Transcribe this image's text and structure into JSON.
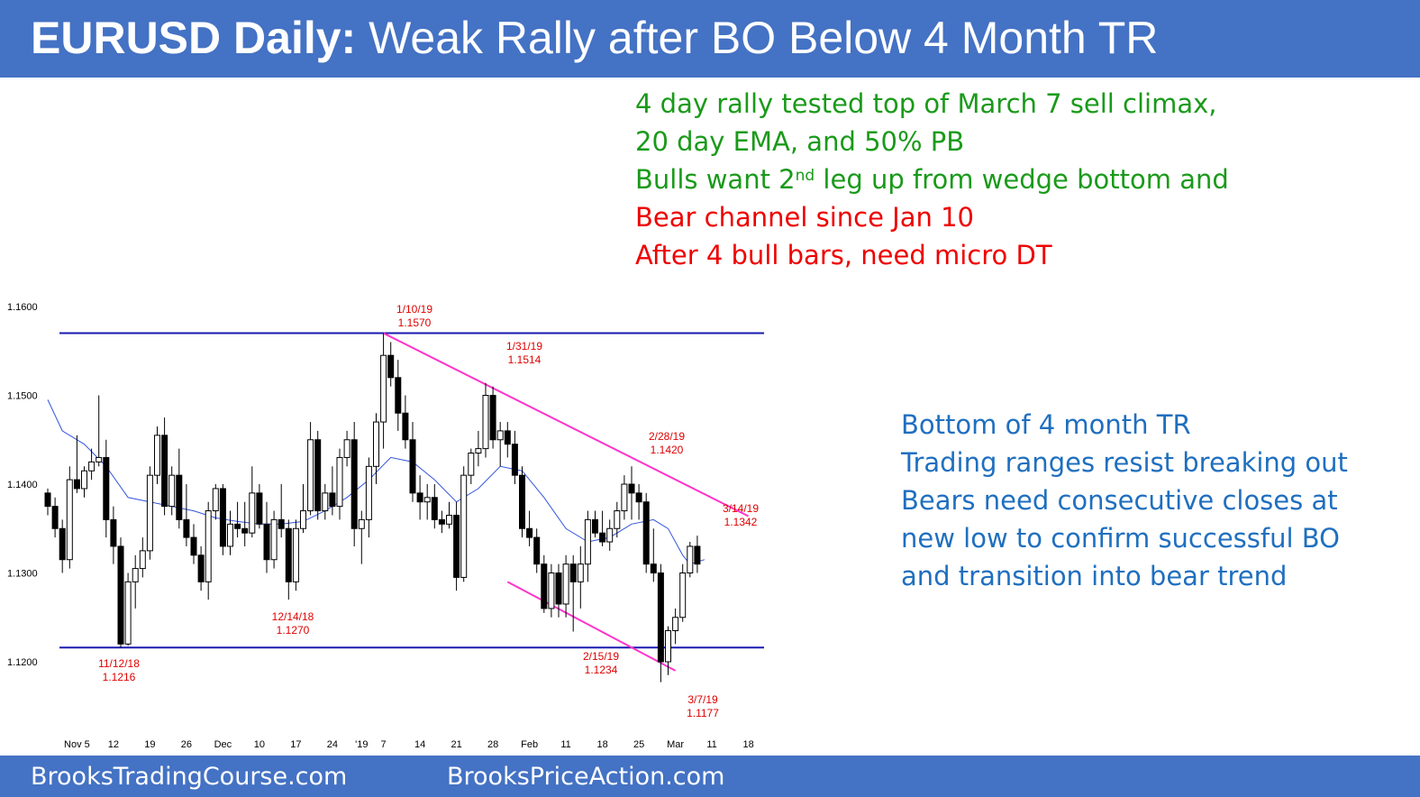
{
  "header": {
    "title_bold": "EURUSD Daily:",
    "title_rest": "Weak Rally after BO Below 4 Month TR"
  },
  "notes_top": {
    "line1": "4 day rally tested top of March 7 sell climax,",
    "line2": "20 day EMA, and 50% PB",
    "line3_pre": "Bulls want 2",
    "line3_sup": "nd",
    "line3_post": " leg up from wedge bottom and",
    "line4": "Bear channel since Jan 10",
    "line5": "After 4 bull bars, need micro DT"
  },
  "notes_right": {
    "line1": "Bottom of 4 month TR",
    "line2": "Trading ranges resist breaking out",
    "line3": "Bears need consecutive closes at",
    "line4": "new low to confirm successful BO",
    "line5": "and transition into bear trend"
  },
  "footer": {
    "left": "BrooksTradingCourse.com",
    "center": "BrooksPriceAction.com"
  },
  "colors": {
    "banner": "#4472c4",
    "green_text": "#1a9a1a",
    "red_text": "#ee0000",
    "blue_text": "#1f6fbf",
    "range_line": "#1a1ab0",
    "channel_line": "#ff33cc",
    "ema_line": "#3355dd",
    "label_red": "#e00000"
  },
  "chart_data": {
    "type": "candlestick",
    "ylim": [
      1.115,
      1.162
    ],
    "y_ticks": [
      {
        "value": 1.16,
        "label": "1.1600"
      },
      {
        "value": 1.15,
        "label": "1.1500"
      },
      {
        "value": 1.14,
        "label": "1.1400"
      },
      {
        "value": 1.13,
        "label": "1.1300"
      },
      {
        "value": 1.12,
        "label": "1.1200"
      }
    ],
    "x_ticks": [
      {
        "index": 4,
        "label": "Nov 5"
      },
      {
        "index": 9,
        "label": "12"
      },
      {
        "index": 14,
        "label": "19"
      },
      {
        "index": 19,
        "label": "26"
      },
      {
        "index": 24,
        "label": "Dec"
      },
      {
        "index": 29,
        "label": "10"
      },
      {
        "index": 34,
        "label": "17"
      },
      {
        "index": 39,
        "label": "24"
      },
      {
        "index": 43,
        "label": "'19"
      },
      {
        "index": 46,
        "label": "7"
      },
      {
        "index": 51,
        "label": "14"
      },
      {
        "index": 56,
        "label": "21"
      },
      {
        "index": 61,
        "label": "28"
      },
      {
        "index": 66,
        "label": "Feb"
      },
      {
        "index": 71,
        "label": "11"
      },
      {
        "index": 76,
        "label": "18"
      },
      {
        "index": 81,
        "label": "25"
      },
      {
        "index": 86,
        "label": "Mar"
      },
      {
        "index": 91,
        "label": "11"
      },
      {
        "index": 96,
        "label": "18"
      }
    ],
    "candles": [
      [
        1.139,
        1.1395,
        1.1365,
        1.1375
      ],
      [
        1.1375,
        1.1385,
        1.134,
        1.135
      ],
      [
        1.135,
        1.136,
        1.13,
        1.1315
      ],
      [
        1.1315,
        1.142,
        1.1305,
        1.1405
      ],
      [
        1.1405,
        1.1455,
        1.139,
        1.1395
      ],
      [
        1.1395,
        1.142,
        1.1385,
        1.1415
      ],
      [
        1.1415,
        1.144,
        1.1405,
        1.1425
      ],
      [
        1.1425,
        1.15,
        1.142,
        1.143
      ],
      [
        1.143,
        1.145,
        1.134,
        1.136
      ],
      [
        1.136,
        1.1375,
        1.131,
        1.133
      ],
      [
        1.133,
        1.134,
        1.1216,
        1.122
      ],
      [
        1.122,
        1.13,
        1.1218,
        1.129
      ],
      [
        1.129,
        1.132,
        1.126,
        1.1305
      ],
      [
        1.1305,
        1.134,
        1.1295,
        1.1325
      ],
      [
        1.1325,
        1.142,
        1.1315,
        1.141
      ],
      [
        1.141,
        1.1465,
        1.14,
        1.1455
      ],
      [
        1.1455,
        1.1475,
        1.1365,
        1.1375
      ],
      [
        1.1375,
        1.142,
        1.1365,
        1.141
      ],
      [
        1.141,
        1.144,
        1.135,
        1.136
      ],
      [
        1.136,
        1.14,
        1.133,
        1.134
      ],
      [
        1.134,
        1.1355,
        1.131,
        1.132
      ],
      [
        1.132,
        1.133,
        1.128,
        1.129
      ],
      [
        1.129,
        1.138,
        1.127,
        1.137
      ],
      [
        1.137,
        1.14,
        1.136,
        1.1395
      ],
      [
        1.1395,
        1.14,
        1.132,
        1.133
      ],
      [
        1.133,
        1.137,
        1.132,
        1.1355
      ],
      [
        1.1355,
        1.138,
        1.134,
        1.135
      ],
      [
        1.135,
        1.138,
        1.133,
        1.1345
      ],
      [
        1.1345,
        1.142,
        1.134,
        1.139
      ],
      [
        1.139,
        1.14,
        1.135,
        1.1355
      ],
      [
        1.1355,
        1.138,
        1.13,
        1.1315
      ],
      [
        1.1315,
        1.137,
        1.1305,
        1.136
      ],
      [
        1.136,
        1.14,
        1.134,
        1.135
      ],
      [
        1.135,
        1.136,
        1.127,
        1.129
      ],
      [
        1.129,
        1.136,
        1.128,
        1.135
      ],
      [
        1.135,
        1.14,
        1.1345,
        1.137
      ],
      [
        1.137,
        1.147,
        1.1365,
        1.145
      ],
      [
        1.145,
        1.146,
        1.136,
        1.137
      ],
      [
        1.137,
        1.14,
        1.136,
        1.139
      ],
      [
        1.139,
        1.142,
        1.1365,
        1.1375
      ],
      [
        1.1375,
        1.144,
        1.136,
        1.143
      ],
      [
        1.143,
        1.146,
        1.142,
        1.145
      ],
      [
        1.145,
        1.147,
        1.133,
        1.135
      ],
      [
        1.135,
        1.137,
        1.131,
        1.136
      ],
      [
        1.136,
        1.143,
        1.134,
        1.142
      ],
      [
        1.142,
        1.148,
        1.14,
        1.147
      ],
      [
        1.147,
        1.157,
        1.144,
        1.1545
      ],
      [
        1.1545,
        1.156,
        1.151,
        1.152
      ],
      [
        1.152,
        1.154,
        1.146,
        1.148
      ],
      [
        1.148,
        1.15,
        1.144,
        1.145
      ],
      [
        1.145,
        1.147,
        1.138,
        1.139
      ],
      [
        1.139,
        1.141,
        1.136,
        1.138
      ],
      [
        1.138,
        1.14,
        1.136,
        1.1385
      ],
      [
        1.1385,
        1.14,
        1.135,
        1.136
      ],
      [
        1.136,
        1.137,
        1.1345,
        1.1355
      ],
      [
        1.1355,
        1.138,
        1.135,
        1.1365
      ],
      [
        1.1365,
        1.138,
        1.128,
        1.1295
      ],
      [
        1.1295,
        1.142,
        1.129,
        1.141
      ],
      [
        1.141,
        1.144,
        1.14,
        1.1435
      ],
      [
        1.1435,
        1.146,
        1.142,
        1.144
      ],
      [
        1.144,
        1.1514,
        1.143,
        1.15
      ],
      [
        1.15,
        1.151,
        1.144,
        1.145
      ],
      [
        1.145,
        1.147,
        1.142,
        1.146
      ],
      [
        1.146,
        1.147,
        1.143,
        1.1445
      ],
      [
        1.1445,
        1.146,
        1.14,
        1.141
      ],
      [
        1.141,
        1.142,
        1.134,
        1.135
      ],
      [
        1.135,
        1.137,
        1.133,
        1.134
      ],
      [
        1.134,
        1.135,
        1.13,
        1.131
      ],
      [
        1.131,
        1.132,
        1.1255,
        1.126
      ],
      [
        1.126,
        1.131,
        1.125,
        1.13
      ],
      [
        1.13,
        1.131,
        1.125,
        1.1265
      ],
      [
        1.1265,
        1.132,
        1.125,
        1.131
      ],
      [
        1.131,
        1.132,
        1.1234,
        1.129
      ],
      [
        1.129,
        1.133,
        1.126,
        1.131
      ],
      [
        1.131,
        1.137,
        1.129,
        1.136
      ],
      [
        1.136,
        1.137,
        1.134,
        1.1345
      ],
      [
        1.1345,
        1.137,
        1.133,
        1.1335
      ],
      [
        1.1335,
        1.136,
        1.1325,
        1.135
      ],
      [
        1.135,
        1.138,
        1.134,
        1.137
      ],
      [
        1.137,
        1.141,
        1.136,
        1.14
      ],
      [
        1.14,
        1.142,
        1.136,
        1.139
      ],
      [
        1.139,
        1.14,
        1.136,
        1.138
      ],
      [
        1.138,
        1.139,
        1.13,
        1.131
      ],
      [
        1.131,
        1.135,
        1.129,
        1.13
      ],
      [
        1.13,
        1.131,
        1.1177,
        1.12
      ],
      [
        1.12,
        1.124,
        1.1185,
        1.1235
      ],
      [
        1.1235,
        1.126,
        1.122,
        1.125
      ],
      [
        1.125,
        1.131,
        1.1245,
        1.13
      ],
      [
        1.13,
        1.1335,
        1.1295,
        1.133
      ],
      [
        1.133,
        1.1342,
        1.13,
        1.131
      ]
    ],
    "ema": [
      [
        0,
        1.1495
      ],
      [
        2,
        1.146
      ],
      [
        5,
        1.1445
      ],
      [
        8,
        1.142
      ],
      [
        11,
        1.1385
      ],
      [
        14,
        1.138
      ],
      [
        17,
        1.1375
      ],
      [
        20,
        1.137
      ],
      [
        23,
        1.1362
      ],
      [
        26,
        1.1358
      ],
      [
        29,
        1.1355
      ],
      [
        32,
        1.1355
      ],
      [
        35,
        1.1358
      ],
      [
        38,
        1.137
      ],
      [
        41,
        1.1385
      ],
      [
        44,
        1.1405
      ],
      [
        47,
        1.143
      ],
      [
        50,
        1.1425
      ],
      [
        53,
        1.1405
      ],
      [
        56,
        1.138
      ],
      [
        59,
        1.1395
      ],
      [
        62,
        1.142
      ],
      [
        65,
        1.1415
      ],
      [
        68,
        1.1385
      ],
      [
        71,
        1.135
      ],
      [
        74,
        1.1335
      ],
      [
        77,
        1.134
      ],
      [
        80,
        1.1355
      ],
      [
        83,
        1.136
      ],
      [
        85,
        1.135
      ],
      [
        87,
        1.132
      ],
      [
        88,
        1.131
      ],
      [
        90,
        1.1315
      ]
    ],
    "range_lines": [
      1.157,
      1.1216
    ],
    "channel_lines": [
      {
        "from": [
          46,
          1.157
        ],
        "to": [
          96,
          1.1364
        ]
      },
      {
        "from": [
          63,
          1.129
        ],
        "to": [
          86,
          1.119
        ]
      }
    ],
    "labels": [
      {
        "date": "1/10/19",
        "value": "1.1570"
      },
      {
        "date": "1/31/19",
        "value": "1.1514"
      },
      {
        "date": "2/28/19",
        "value": "1.1420"
      },
      {
        "date": "3/14/19",
        "value": "1.1342"
      },
      {
        "date": "11/12/18",
        "value": "1.1216"
      },
      {
        "date": "12/14/18",
        "value": "1.1270"
      },
      {
        "date": "2/15/19",
        "value": "1.1234"
      },
      {
        "date": "3/7/19",
        "value": "1.1177"
      }
    ]
  }
}
